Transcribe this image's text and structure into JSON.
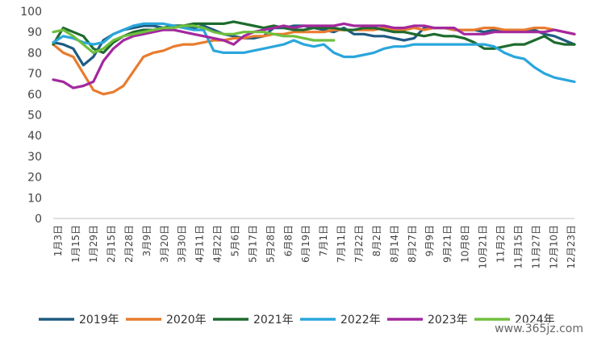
{
  "watermark": "www.365jz.com",
  "chart_data": {
    "type": "line",
    "title": "",
    "xlabel": "",
    "ylabel": "",
    "ylim": [
      0,
      100
    ],
    "yticks": [
      0,
      10,
      20,
      30,
      40,
      50,
      60,
      70,
      80,
      90,
      100
    ],
    "grid": false,
    "legend_position": "bottom",
    "x_tick_labels": [
      "1月3日",
      "1月15日",
      "1月29日",
      "2月15日",
      "2月28日",
      "3月9日",
      "3月20日",
      "3月30日",
      "4月11日",
      "4月22日",
      "5月6日",
      "5月17日",
      "5月28日",
      "6月8日",
      "6月19日",
      "7月1日",
      "7月11日",
      "7月22日",
      "8月2日",
      "8月14日",
      "8月27日",
      "9月9日",
      "9月21日",
      "10月8日",
      "10月21日",
      "11月2日",
      "11月15日",
      "11月27日",
      "12月10日",
      "12月23日"
    ],
    "series": [
      {
        "name": "2019年",
        "color": "#1f5b82",
        "values": [
          85,
          84,
          82,
          74,
          78,
          86,
          89,
          91,
          92,
          93,
          93,
          92,
          93,
          93,
          92,
          93,
          91,
          89,
          88,
          87,
          87,
          88,
          92,
          92,
          93,
          93,
          92,
          91,
          90,
          92,
          89,
          89,
          88,
          88,
          87,
          86,
          87,
          92,
          92,
          92,
          91,
          91,
          91,
          90,
          91,
          91,
          91,
          91,
          91,
          89,
          88,
          86,
          84
        ]
      },
      {
        "name": "2020年",
        "color": "#e87c2e",
        "values": [
          84,
          80,
          78,
          70,
          62,
          60,
          61,
          64,
          71,
          78,
          80,
          81,
          83,
          84,
          84,
          85,
          86,
          86,
          87,
          87,
          88,
          88,
          89,
          89,
          90,
          90,
          90,
          90,
          91,
          91,
          91,
          91,
          91,
          92,
          91,
          91,
          92,
          91,
          92,
          92,
          91,
          91,
          91,
          92,
          92,
          91,
          91,
          91,
          92,
          92,
          91,
          90,
          89
        ]
      },
      {
        "name": "2021年",
        "color": "#1e6b2e",
        "values": [
          84,
          92,
          90,
          88,
          82,
          80,
          85,
          88,
          90,
          91,
          91,
          92,
          93,
          93,
          94,
          94,
          94,
          94,
          95,
          94,
          93,
          92,
          93,
          92,
          91,
          91,
          92,
          92,
          92,
          91,
          91,
          92,
          92,
          91,
          90,
          90,
          89,
          88,
          89,
          88,
          88,
          87,
          85,
          82,
          82,
          83,
          84,
          84,
          86,
          88,
          85,
          84,
          84
        ]
      },
      {
        "name": "2022年",
        "color": "#2aa6dc",
        "values": [
          85,
          88,
          87,
          85,
          84,
          85,
          89,
          91,
          93,
          94,
          94,
          94,
          93,
          92,
          91,
          91,
          81,
          80,
          80,
          80,
          81,
          82,
          83,
          84,
          86,
          84,
          83,
          84,
          80,
          78,
          78,
          79,
          80,
          82,
          83,
          83,
          84,
          84,
          84,
          84,
          84,
          84,
          84,
          84,
          83,
          80,
          78,
          77,
          73,
          70,
          68,
          67,
          66
        ]
      },
      {
        "name": "2023年",
        "color": "#a3299e",
        "values": [
          67,
          66,
          63,
          64,
          66,
          76,
          82,
          86,
          88,
          89,
          90,
          91,
          91,
          90,
          89,
          88,
          87,
          86,
          84,
          88,
          90,
          91,
          92,
          93,
          92,
          93,
          93,
          93,
          93,
          94,
          93,
          93,
          93,
          93,
          92,
          92,
          93,
          93,
          92,
          92,
          92,
          89,
          89,
          89,
          90,
          90,
          90,
          90,
          90,
          90,
          91,
          90,
          89
        ]
      },
      {
        "name": "2024年",
        "color": "#6fbf3f",
        "values": [
          90,
          91,
          88,
          84,
          80,
          82,
          86,
          88,
          89,
          90,
          91,
          92,
          92,
          93,
          93,
          92,
          90,
          89,
          89,
          90,
          90,
          90,
          89,
          88,
          88,
          87,
          86,
          86,
          86
        ]
      }
    ]
  }
}
